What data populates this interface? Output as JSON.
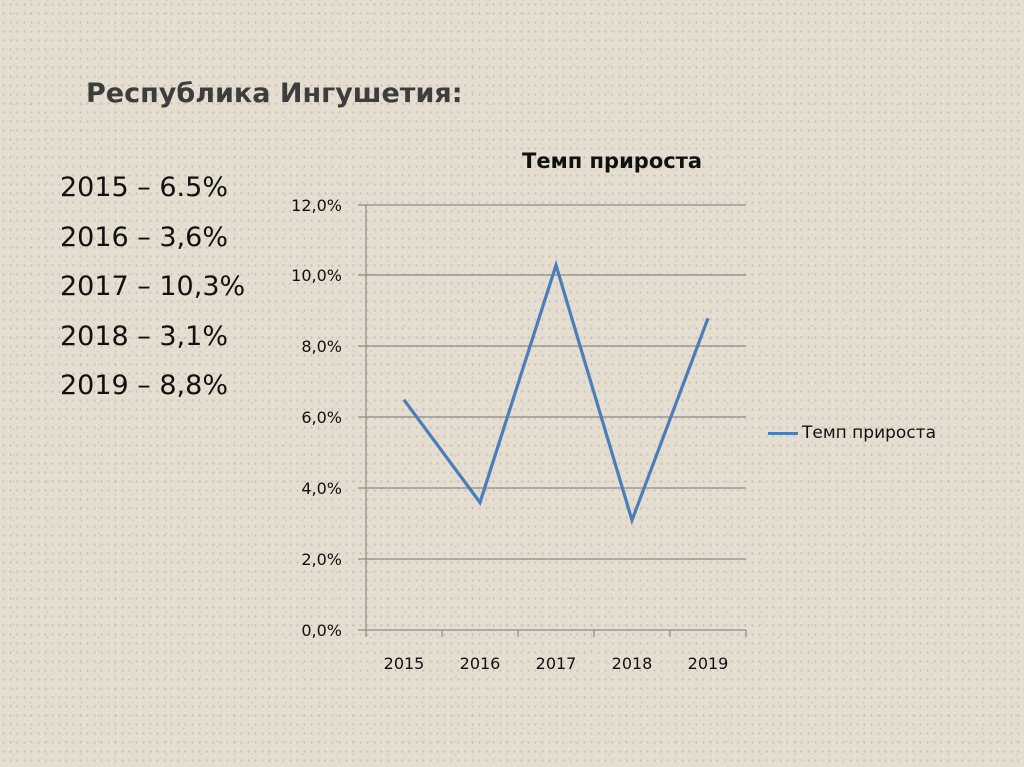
{
  "slide": {
    "title": "Республика Ингушетия:",
    "values": [
      "2015 – 6.5%",
      "2016 – 3,6%",
      "2017 – 10,3%",
      "2018 – 3,1%",
      "2019 – 8,8%"
    ]
  },
  "chart": {
    "title": "Темп прироста",
    "legend_label": "Темп прироста",
    "y_ticks": [
      "0,0%",
      "2,0%",
      "4,0%",
      "6,0%",
      "8,0%",
      "10,0%",
      "12,0%"
    ],
    "x_ticks": [
      "2015",
      "2016",
      "2017",
      "2018",
      "2019"
    ],
    "line_color": "#4a7ebb"
  },
  "chart_data": {
    "type": "line",
    "title": "Темп прироста",
    "categories": [
      "2015",
      "2016",
      "2017",
      "2018",
      "2019"
    ],
    "series": [
      {
        "name": "Темп прироста",
        "values": [
          6.5,
          3.6,
          10.3,
          3.1,
          8.8
        ],
        "color": "#4a7ebb"
      }
    ],
    "xlabel": "",
    "ylabel": "",
    "ylim": [
      0,
      12
    ],
    "y_tick_step": 2,
    "y_format": "percent, one decimal, comma separator",
    "grid": true,
    "legend_position": "right"
  }
}
